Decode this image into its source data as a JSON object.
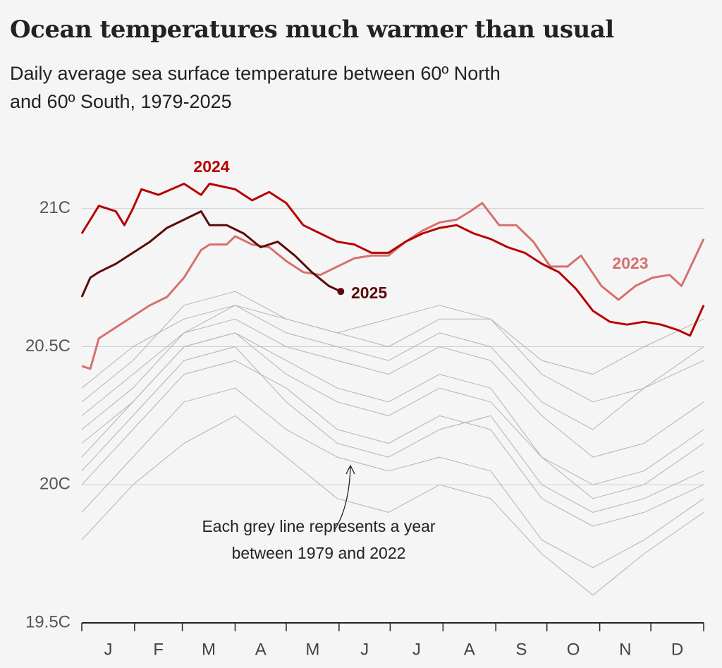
{
  "chart_data": {
    "type": "line",
    "title": "Ocean temperatures much warmer than usual",
    "subtitle_lines": [
      "Daily average sea surface temperature between 60º North",
      "and 60º South, 1979-2025"
    ],
    "annotation_lines": [
      "Each grey line represents a year",
      "between 1979 and 2022"
    ],
    "xlim": [
      0,
      365
    ],
    "xticks": [
      0,
      31,
      59,
      90,
      120,
      151,
      181,
      212,
      243,
      273,
      304,
      334,
      365
    ],
    "categories": [
      "J",
      "F",
      "M",
      "A",
      "M",
      "J",
      "J",
      "A",
      "S",
      "O",
      "N",
      "D"
    ],
    "ylim": [
      19.5,
      21.15
    ],
    "yticks": [
      {
        "value": 19.5,
        "label": "19.5C"
      },
      {
        "value": 20,
        "label": "20C"
      },
      {
        "value": 20.5,
        "label": "20.5C"
      },
      {
        "value": 21,
        "label": "21C"
      }
    ],
    "grid": true,
    "series": [
      {
        "color": "#b3b3b3",
        "x": [
          0,
          30,
          60,
          90,
          120,
          150,
          180,
          210,
          240,
          270,
          300,
          330,
          365
        ],
        "values": [
          20.0,
          20.2,
          20.4,
          20.45,
          20.35,
          20.2,
          20.15,
          20.25,
          20.2,
          19.95,
          19.85,
          19.9,
          20.0
        ]
      },
      {
        "color": "#b3b3b3",
        "x": [
          0,
          30,
          60,
          90,
          120,
          150,
          180,
          210,
          240,
          270,
          300,
          330,
          365
        ],
        "values": [
          20.1,
          20.3,
          20.5,
          20.55,
          20.45,
          20.35,
          20.3,
          20.4,
          20.35,
          20.1,
          19.95,
          20.0,
          20.15
        ]
      },
      {
        "color": "#b3b3b3",
        "x": [
          0,
          30,
          60,
          90,
          120,
          150,
          180,
          210,
          240,
          270,
          300,
          330,
          365
        ],
        "values": [
          20.2,
          20.35,
          20.55,
          20.6,
          20.5,
          20.45,
          20.4,
          20.5,
          20.45,
          20.25,
          20.1,
          20.15,
          20.3
        ]
      },
      {
        "color": "#b3b3b3",
        "x": [
          0,
          30,
          60,
          90,
          120,
          150,
          180,
          210,
          240,
          270,
          300,
          330,
          365
        ],
        "values": [
          19.9,
          20.1,
          20.3,
          20.35,
          20.2,
          20.1,
          20.05,
          20.1,
          20.05,
          19.8,
          19.7,
          19.8,
          19.95
        ]
      },
      {
        "color": "#b3b3b3",
        "x": [
          0,
          30,
          60,
          90,
          120,
          150,
          180,
          210,
          240,
          270,
          300,
          330,
          365
        ],
        "values": [
          20.3,
          20.45,
          20.65,
          20.7,
          20.6,
          20.55,
          20.5,
          20.6,
          20.6,
          20.4,
          20.3,
          20.35,
          20.45
        ]
      },
      {
        "color": "#b3b3b3",
        "x": [
          0,
          30,
          60,
          90,
          120,
          150,
          180,
          210,
          240,
          270,
          300,
          330,
          365
        ],
        "values": [
          20.05,
          20.25,
          20.45,
          20.5,
          20.3,
          20.15,
          20.1,
          20.2,
          20.25,
          20.0,
          19.9,
          19.95,
          20.05
        ]
      },
      {
        "color": "#b3b3b3",
        "x": [
          0,
          30,
          60,
          90,
          120,
          150,
          180,
          210,
          240,
          270,
          300,
          330,
          365
        ],
        "values": [
          19.8,
          20.0,
          20.15,
          20.25,
          20.1,
          19.95,
          19.9,
          20.0,
          19.95,
          19.75,
          19.6,
          19.75,
          19.9
        ]
      },
      {
        "color": "#b3b3b3",
        "x": [
          0,
          30,
          60,
          90,
          120,
          150,
          180,
          210,
          240,
          270,
          300,
          330,
          365
        ],
        "values": [
          20.25,
          20.4,
          20.55,
          20.65,
          20.55,
          20.5,
          20.45,
          20.55,
          20.5,
          20.3,
          20.2,
          20.35,
          20.5
        ]
      },
      {
        "color": "#b3b3b3",
        "x": [
          0,
          30,
          60,
          90,
          120,
          150,
          180,
          210,
          240,
          270,
          300,
          330,
          365
        ],
        "values": [
          20.15,
          20.3,
          20.5,
          20.55,
          20.4,
          20.3,
          20.25,
          20.35,
          20.3,
          20.1,
          20.0,
          20.05,
          20.2
        ]
      },
      {
        "color": "#b3b3b3",
        "x": [
          0,
          30,
          60,
          90,
          120,
          150,
          180,
          210,
          240,
          270,
          300,
          330,
          365
        ],
        "values": [
          20.35,
          20.5,
          20.6,
          20.65,
          20.6,
          20.55,
          20.6,
          20.65,
          20.6,
          20.45,
          20.4,
          20.5,
          20.6
        ]
      },
      {
        "name": "2023",
        "color": "#d7706f",
        "x": [
          0,
          5,
          10,
          20,
          30,
          40,
          50,
          60,
          70,
          75,
          85,
          90,
          100,
          110,
          120,
          130,
          140,
          150,
          160,
          170,
          180,
          190,
          200,
          210,
          220,
          228,
          235,
          245,
          255,
          265,
          275,
          285,
          293,
          305,
          315,
          325,
          335,
          345,
          352,
          365
        ],
        "values": [
          20.43,
          20.42,
          20.53,
          20.57,
          20.61,
          20.65,
          20.68,
          20.75,
          20.85,
          20.87,
          20.87,
          20.9,
          20.87,
          20.86,
          20.81,
          20.77,
          20.76,
          20.79,
          20.82,
          20.83,
          20.83,
          20.88,
          20.92,
          20.95,
          20.96,
          20.99,
          21.02,
          20.94,
          20.94,
          20.88,
          20.79,
          20.79,
          20.83,
          20.72,
          20.67,
          20.72,
          20.75,
          20.76,
          20.72,
          20.89
        ]
      },
      {
        "name": "2024",
        "color": "#b80000",
        "x": [
          0,
          10,
          20,
          25,
          30,
          35,
          45,
          60,
          70,
          75,
          90,
          100,
          110,
          120,
          130,
          140,
          150,
          160,
          170,
          180,
          190,
          200,
          210,
          220,
          230,
          240,
          250,
          260,
          270,
          280,
          290,
          300,
          310,
          320,
          330,
          340,
          350,
          357,
          365
        ],
        "values": [
          20.91,
          21.01,
          20.99,
          20.94,
          21.0,
          21.07,
          21.05,
          21.09,
          21.05,
          21.09,
          21.07,
          21.03,
          21.06,
          21.02,
          20.94,
          20.91,
          20.88,
          20.87,
          20.84,
          20.84,
          20.88,
          20.91,
          20.93,
          20.94,
          20.91,
          20.89,
          20.86,
          20.84,
          20.8,
          20.77,
          20.71,
          20.63,
          20.59,
          20.58,
          20.59,
          20.58,
          20.56,
          20.54,
          20.65
        ]
      },
      {
        "name": "2025",
        "color": "#5c0a0a",
        "x": [
          0,
          5,
          10,
          20,
          30,
          40,
          50,
          60,
          70,
          75,
          85,
          95,
          105,
          115,
          125,
          135,
          145,
          152
        ],
        "values": [
          20.68,
          20.75,
          20.77,
          20.8,
          20.84,
          20.88,
          20.93,
          20.96,
          20.99,
          20.94,
          20.94,
          20.91,
          20.86,
          20.88,
          20.83,
          20.77,
          20.72,
          20.7
        ]
      }
    ]
  }
}
